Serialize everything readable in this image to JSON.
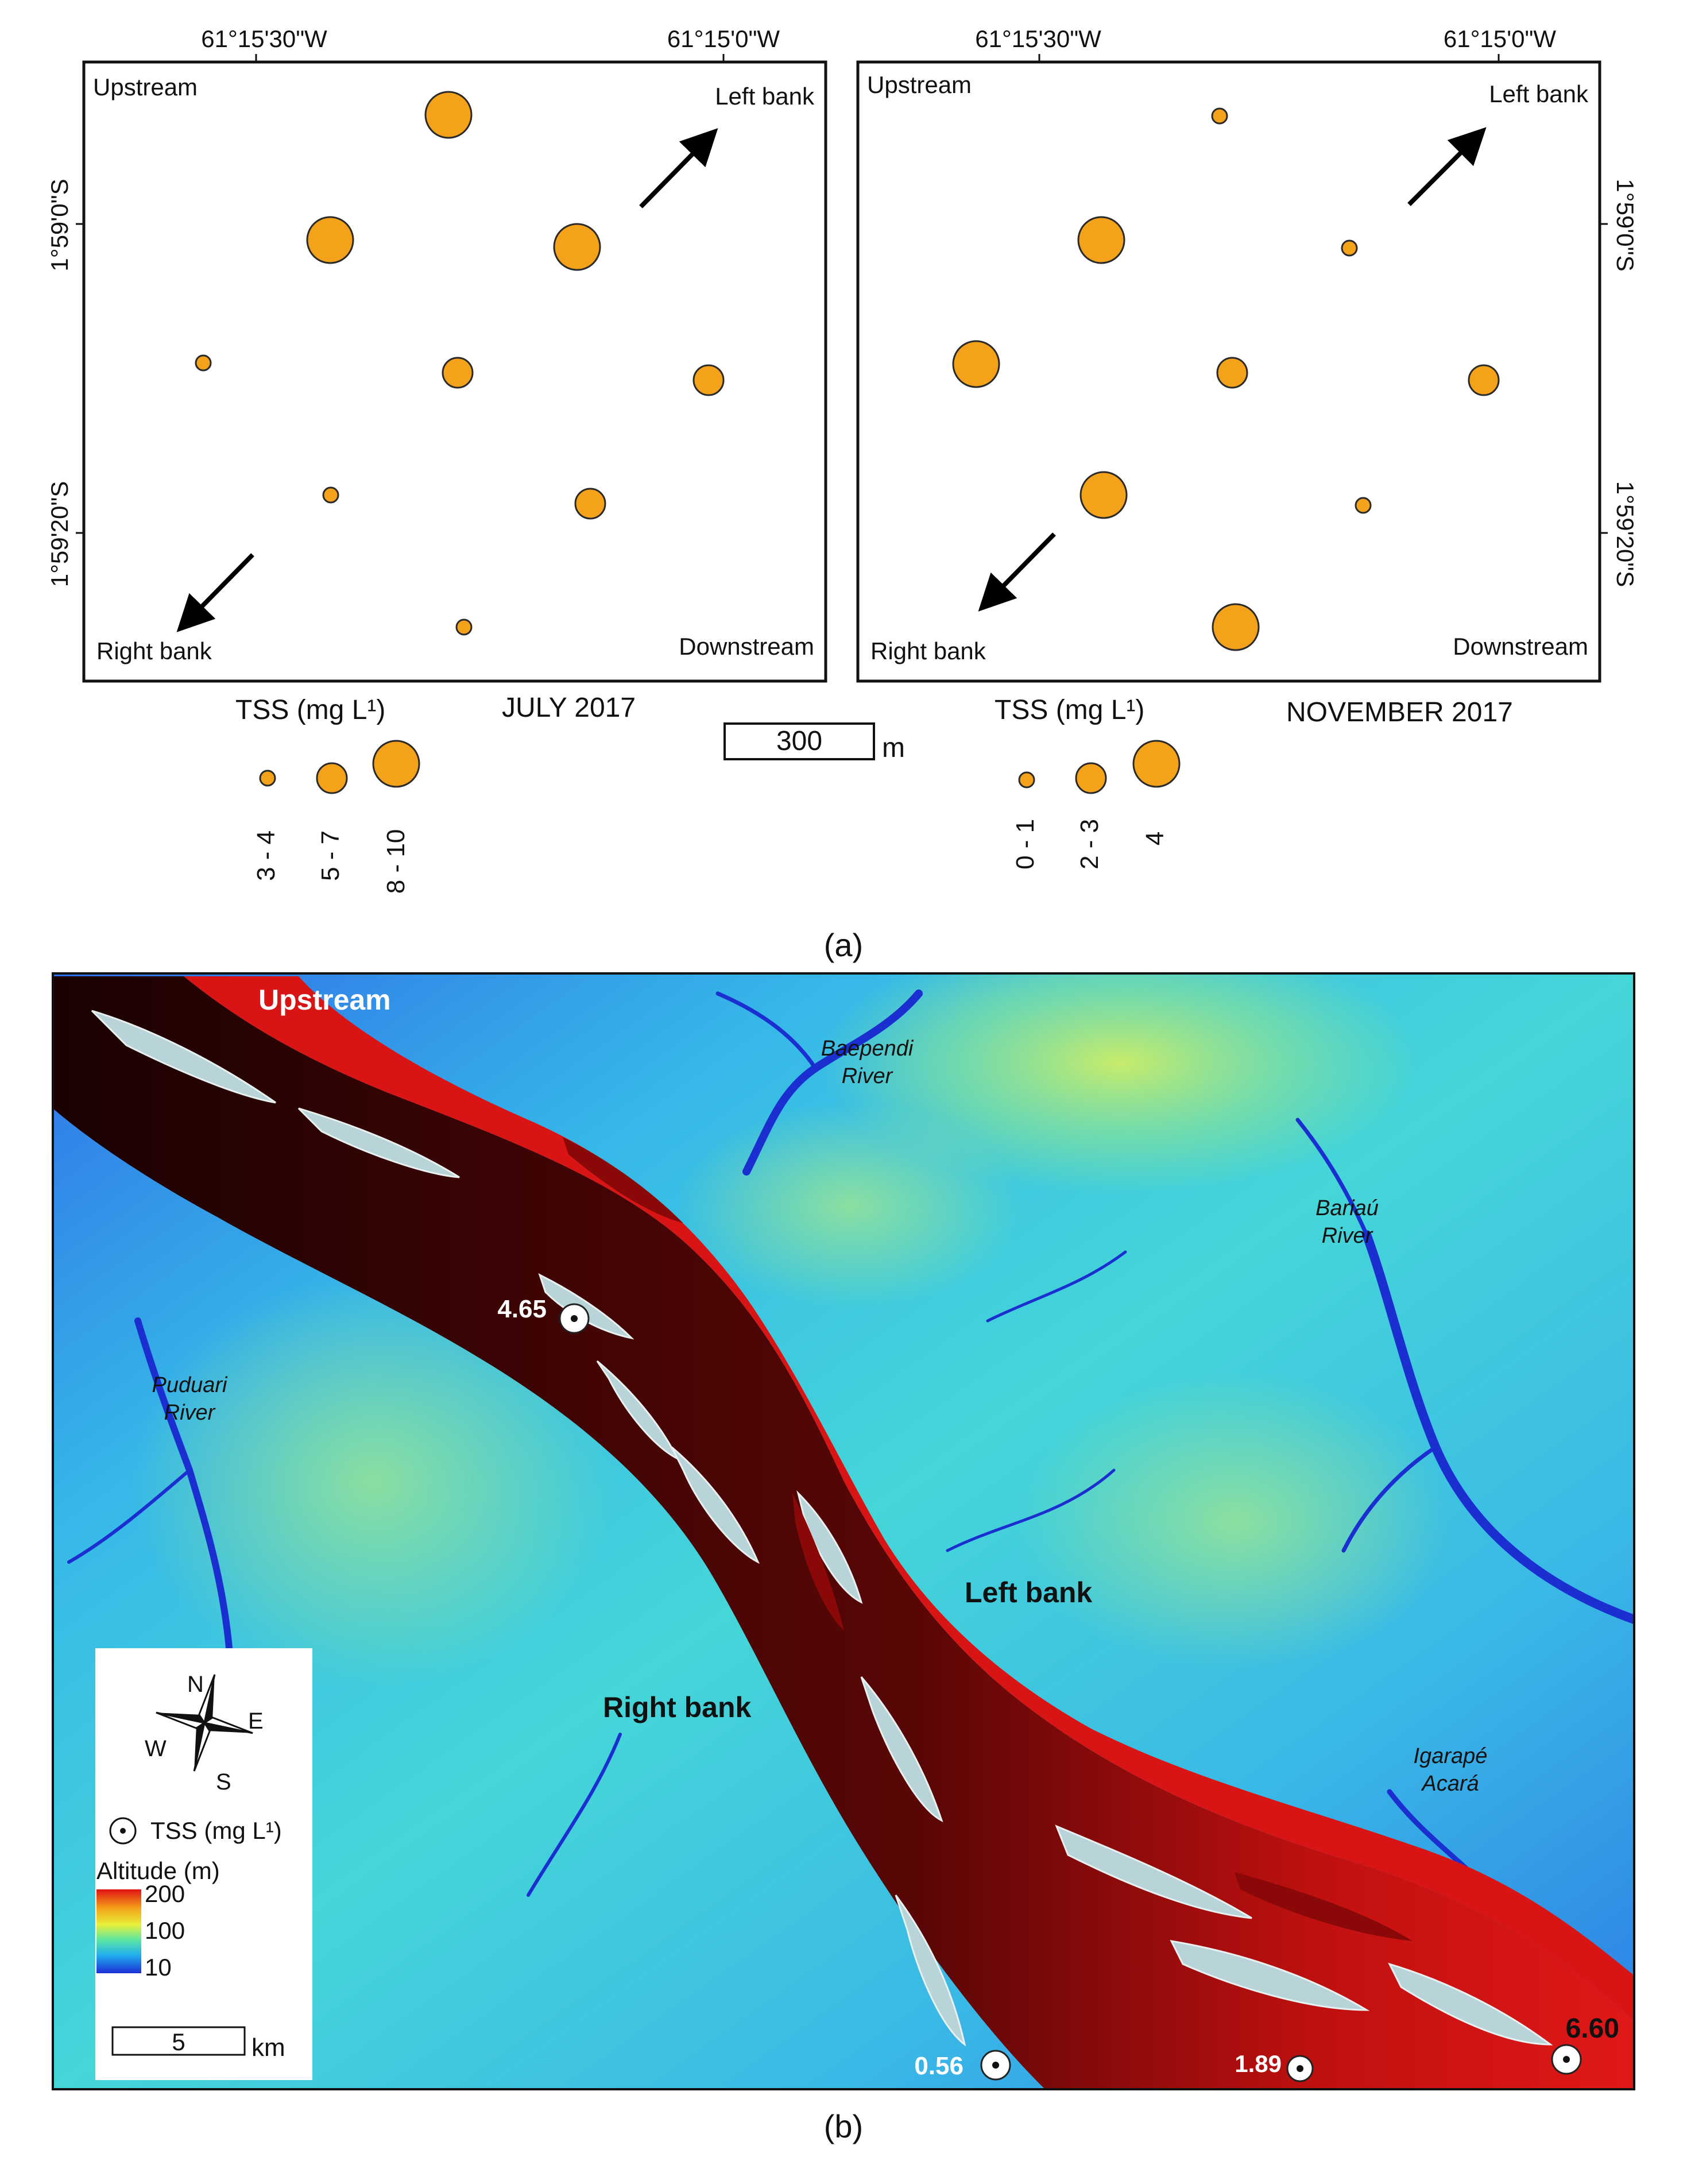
{
  "panel_a": {
    "left_map": {
      "lon_ticks": [
        "61°15'30\"W",
        "61°15'0\"W"
      ],
      "lat_ticks": [
        "1°59'0\"S",
        "1°59'20\"S"
      ],
      "corner_labels": {
        "upstream": "Upstream",
        "left_bank": "Left bank",
        "right_bank": "Right bank",
        "downstream": "Downstream"
      },
      "legend_title": "TSS (mg L¹)",
      "month": "JULY 2017",
      "legend_classes": [
        "3 - 4",
        "5 - 7",
        "8 - 10"
      ]
    },
    "right_map": {
      "lon_ticks": [
        "61°15'30\"W",
        "61°15'0\"W"
      ],
      "lat_ticks": [
        "1°59'0\"S",
        "1°59'20\"S"
      ],
      "corner_labels": {
        "upstream": "Upstream",
        "left_bank": "Left bank",
        "right_bank": "Right bank",
        "downstream": "Downstream"
      },
      "legend_title": "TSS (mg L¹)",
      "month": "NOVEMBER 2017",
      "legend_classes": [
        "0 - 1",
        "2 - 3",
        "4"
      ]
    },
    "scale_bar": {
      "value": "300",
      "unit": "m"
    },
    "caption": "(a)"
  },
  "panel_b": {
    "labels": {
      "upstream": "Upstream",
      "left_bank": "Left bank",
      "right_bank": "Right bank"
    },
    "rivers": [
      {
        "line1": "Baependi",
        "line2": "River"
      },
      {
        "line1": "Bariaú",
        "line2": "River"
      },
      {
        "line1": "Puduari",
        "line2": "River"
      },
      {
        "line1": "Igarapé",
        "line2": "Acará"
      }
    ],
    "tss_points": [
      "4.65",
      "0.56",
      "1.89",
      "6.60"
    ],
    "legend": {
      "compass": [
        "N",
        "E",
        "S",
        "W"
      ],
      "tss_label": "TSS (mg L¹)",
      "altitude_title": "Altitude (m)",
      "altitude_ticks": [
        "200",
        "100",
        "10"
      ],
      "scale_value": "5",
      "scale_unit": "km"
    },
    "colors": {
      "river": "#d01010",
      "land_low": "#2a3fe0",
      "land_mid": "#33c4e6",
      "land_high": "#b6e85a"
    },
    "caption": "(b)"
  },
  "symbol_color": "#f5a21b"
}
